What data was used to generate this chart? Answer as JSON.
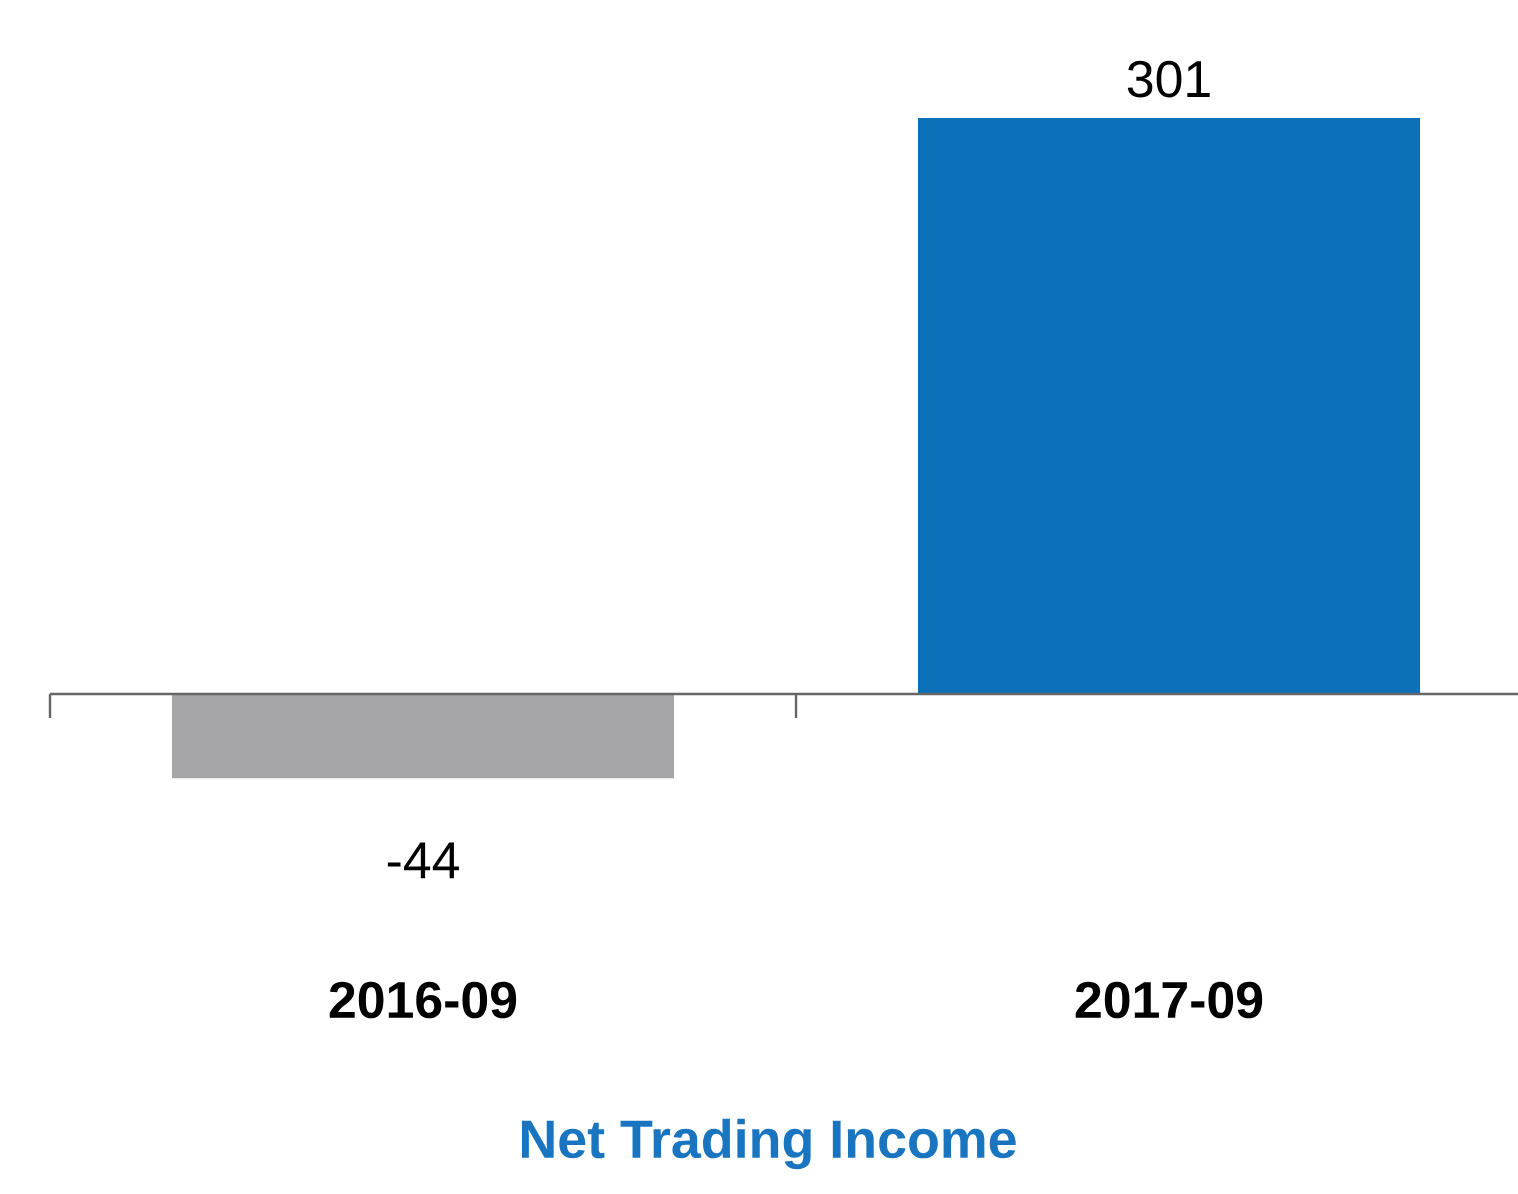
{
  "chart_data": {
    "type": "bar",
    "title": "Net Trading Income",
    "categories": [
      "2016-09",
      "2017-09"
    ],
    "values": [
      -44,
      301
    ],
    "colors": [
      "#a6a6a8",
      "#0b70b8"
    ],
    "relative": false,
    "data_labels": true
  }
}
